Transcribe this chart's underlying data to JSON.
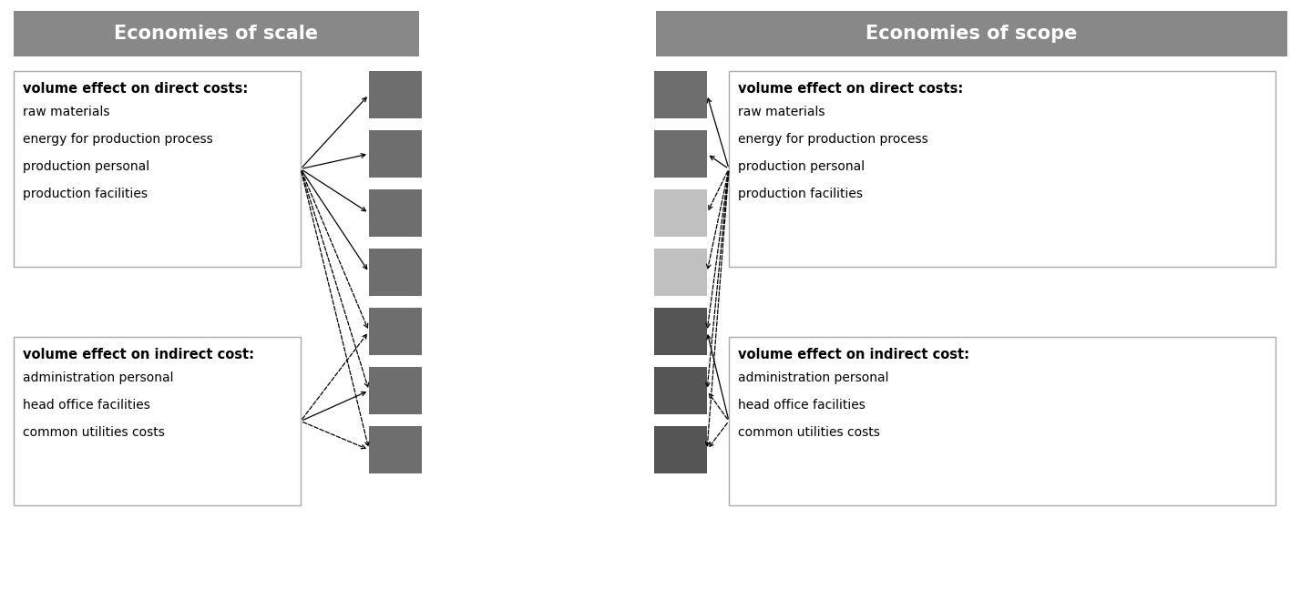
{
  "title_left": "Economies of scale",
  "title_right": "Economies of scope",
  "title_bg": "#888888",
  "title_color": "#ffffff",
  "title_fontsize": 15,
  "bg_color": "#ffffff",
  "left_box1_title": "volume effect on direct costs:",
  "left_box1_lines": [
    "raw materials",
    "energy for production process",
    "production personal",
    "production facilities"
  ],
  "left_box2_title": "volume effect on indirect cost:",
  "left_box2_lines": [
    "administration personal",
    "head office facilities",
    "common utilities costs"
  ],
  "right_box1_title": "volume effect on direct costs:",
  "right_box1_lines": [
    "raw materials",
    "energy for production process",
    "production personal",
    "production facilities"
  ],
  "right_box2_title": "volume effect on indirect cost:",
  "right_box2_lines": [
    "administration personal",
    "head office facilities",
    "common utilities costs"
  ],
  "scale_sq_colors": [
    "#6e6e6e",
    "#6e6e6e",
    "#6e6e6e",
    "#6e6e6e",
    "#6e6e6e",
    "#6e6e6e",
    "#6e6e6e"
  ],
  "scope_sq_colors": [
    "#6e6e6e",
    "#6e6e6e",
    "#c0c0c0",
    "#c0c0c0",
    "#555555",
    "#555555",
    "#555555"
  ]
}
